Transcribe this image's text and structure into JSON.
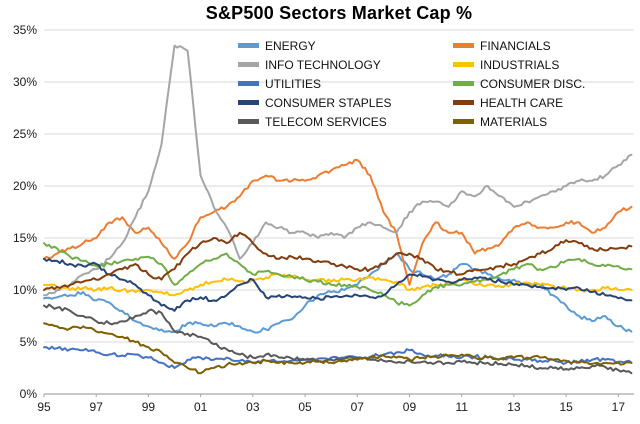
{
  "title": "S&P500 Sectors Market Cap %",
  "chart_data": {
    "type": "line",
    "title": "S&P500 Sectors Market Cap %",
    "xlabel": "",
    "ylabel": "",
    "ylim": [
      0,
      35
    ],
    "xlim": [
      1995,
      2017.6
    ],
    "grid": "horizontal-gridlines",
    "legend_position": "inside-top-center, two columns",
    "y_tick_labels": [
      "0%",
      "5%",
      "10%",
      "15%",
      "20%",
      "25%",
      "30%",
      "35%"
    ],
    "y_tick_values": [
      0,
      5,
      10,
      15,
      20,
      25,
      30,
      35
    ],
    "x_tick_labels": [
      "95",
      "97",
      "99",
      "01",
      "03",
      "05",
      "07",
      "09",
      "11",
      "13",
      "15",
      "17"
    ],
    "x_tick_values": [
      1995,
      1997,
      1999,
      2001,
      2003,
      2005,
      2007,
      2009,
      2011,
      2013,
      2015,
      2017
    ],
    "x_unit": "year (semi-annual samples)",
    "x": [
      1995,
      1995.5,
      1996,
      1996.5,
      1997,
      1997.5,
      1998,
      1998.5,
      1999,
      1999.5,
      2000,
      2000.5,
      2001,
      2001.5,
      2002,
      2002.5,
      2003,
      2003.5,
      2004,
      2004.5,
      2005,
      2005.5,
      2006,
      2006.5,
      2007,
      2007.5,
      2008,
      2008.5,
      2009,
      2009.5,
      2010,
      2010.5,
      2011,
      2011.5,
      2012,
      2012.5,
      2013,
      2013.5,
      2014,
      2014.5,
      2015,
      2015.5,
      2016,
      2016.5,
      2017,
      2017.5
    ],
    "series": [
      {
        "name": "ENERGY",
        "color": "#5B9BD5",
        "values": [
          9.2,
          9.3,
          9.5,
          9.8,
          9.0,
          8.8,
          8.0,
          7.0,
          6.5,
          6.2,
          6.0,
          6.8,
          6.8,
          6.5,
          6.8,
          6.5,
          6.0,
          6.2,
          6.8,
          7.2,
          8.5,
          9.5,
          9.8,
          10.0,
          10.5,
          11.5,
          12.5,
          13.5,
          12.0,
          11.5,
          11.0,
          11.5,
          12.5,
          12.0,
          11.5,
          11.0,
          11.0,
          10.5,
          10.5,
          9.5,
          8.5,
          7.5,
          7.0,
          7.5,
          6.5,
          6.0
        ]
      },
      {
        "name": "FINANCIALS",
        "color": "#ED7D31",
        "values": [
          13.0,
          13.5,
          14.0,
          14.5,
          15.0,
          16.5,
          17.0,
          15.5,
          16.0,
          14.5,
          13.0,
          14.5,
          17.0,
          17.5,
          18.0,
          19.0,
          20.5,
          21.0,
          20.5,
          20.5,
          20.5,
          21.0,
          21.5,
          22.0,
          22.5,
          21.0,
          17.5,
          15.5,
          10.5,
          14.5,
          16.5,
          15.5,
          15.5,
          13.5,
          14.0,
          14.5,
          16.0,
          16.5,
          16.0,
          16.0,
          16.5,
          16.5,
          15.5,
          16.0,
          17.5,
          18.0
        ]
      },
      {
        "name": "INFO TECHNOLOGY",
        "color": "#A5A5A5",
        "values": [
          9.5,
          10.0,
          10.5,
          11.5,
          12.0,
          13.0,
          14.5,
          17.0,
          19.5,
          24.0,
          33.5,
          33.0,
          21.0,
          18.0,
          16.0,
          13.0,
          14.5,
          16.5,
          16.0,
          15.5,
          15.5,
          15.0,
          15.5,
          15.0,
          16.0,
          16.5,
          16.0,
          15.5,
          17.5,
          18.5,
          18.5,
          18.0,
          19.5,
          19.0,
          20.0,
          19.0,
          18.0,
          18.5,
          19.0,
          19.5,
          20.0,
          20.5,
          20.5,
          21.0,
          22.0,
          23.0
        ]
      },
      {
        "name": "INDUSTRIALS",
        "color": "#FFC000",
        "values": [
          10.5,
          10.3,
          10.0,
          10.2,
          10.0,
          10.2,
          10.0,
          9.8,
          10.0,
          9.8,
          9.5,
          10.0,
          10.5,
          10.8,
          11.0,
          10.8,
          11.0,
          11.2,
          11.5,
          11.3,
          11.0,
          11.0,
          10.8,
          11.0,
          11.0,
          11.2,
          11.0,
          10.8,
          10.0,
          10.3,
          10.5,
          10.5,
          11.0,
          10.5,
          10.5,
          10.3,
          10.5,
          10.7,
          10.5,
          10.4,
          10.2,
          10.0,
          10.0,
          10.2,
          10.0,
          10.0
        ]
      },
      {
        "name": "UTILITIES",
        "color": "#4472C4",
        "values": [
          4.5,
          4.4,
          4.3,
          4.2,
          4.0,
          3.8,
          3.7,
          3.8,
          3.5,
          3.0,
          2.5,
          3.3,
          3.5,
          3.3,
          3.5,
          3.2,
          3.0,
          3.2,
          3.1,
          3.2,
          3.3,
          3.4,
          3.5,
          3.5,
          3.5,
          3.6,
          3.8,
          4.0,
          4.2,
          3.8,
          3.7,
          3.6,
          3.5,
          3.6,
          3.5,
          3.4,
          3.3,
          3.3,
          3.2,
          3.3,
          3.0,
          3.1,
          3.3,
          3.3,
          3.1,
          3.0
        ]
      },
      {
        "name": "CONSUMER DISC.",
        "color": "#70AD47",
        "values": [
          14.5,
          14.0,
          13.2,
          12.8,
          12.3,
          12.5,
          12.8,
          13.0,
          13.2,
          12.5,
          10.5,
          11.5,
          12.5,
          13.0,
          13.5,
          12.5,
          11.5,
          11.8,
          11.5,
          11.3,
          11.0,
          10.8,
          10.5,
          10.5,
          10.3,
          10.0,
          9.5,
          8.8,
          8.5,
          9.5,
          10.3,
          10.5,
          10.5,
          10.8,
          11.0,
          11.5,
          12.0,
          12.5,
          12.0,
          12.2,
          12.8,
          13.0,
          12.5,
          12.3,
          12.3,
          12.0
        ]
      },
      {
        "name": "CONSUMER STAPLES",
        "color": "#264478",
        "values": [
          13.0,
          12.8,
          12.5,
          12.3,
          12.5,
          11.5,
          11.0,
          10.5,
          9.5,
          8.5,
          8.0,
          9.0,
          9.3,
          9.0,
          9.5,
          10.5,
          11.0,
          9.3,
          9.5,
          9.3,
          9.3,
          9.2,
          9.3,
          9.4,
          9.5,
          9.3,
          9.5,
          10.5,
          11.5,
          11.3,
          11.0,
          10.8,
          11.0,
          11.2,
          11.0,
          10.8,
          10.5,
          10.5,
          10.3,
          10.2,
          10.0,
          10.2,
          9.8,
          9.5,
          9.2,
          9.0
        ]
      },
      {
        "name": "HEALTH CARE",
        "color": "#843C0C",
        "values": [
          10.0,
          10.3,
          10.5,
          10.8,
          11.0,
          11.5,
          12.0,
          12.5,
          11.5,
          11.0,
          12.0,
          13.5,
          14.5,
          15.0,
          14.5,
          15.5,
          14.5,
          13.5,
          13.0,
          13.2,
          13.0,
          12.8,
          12.5,
          12.3,
          12.0,
          12.0,
          12.5,
          13.5,
          13.5,
          13.0,
          12.0,
          11.8,
          11.5,
          12.0,
          12.0,
          12.3,
          12.5,
          13.0,
          13.5,
          14.0,
          14.8,
          14.5,
          14.0,
          13.8,
          14.0,
          14.2
        ]
      },
      {
        "name": "TELECOM SERVICES",
        "color": "#595959",
        "values": [
          8.5,
          8.3,
          8.0,
          7.5,
          7.0,
          6.8,
          7.0,
          7.5,
          8.0,
          7.8,
          6.0,
          5.8,
          5.5,
          4.8,
          4.3,
          3.8,
          3.5,
          3.8,
          3.5,
          3.4,
          3.3,
          3.2,
          3.3,
          3.4,
          3.5,
          3.3,
          3.2,
          3.0,
          3.2,
          3.1,
          3.0,
          3.0,
          3.1,
          3.0,
          3.0,
          2.9,
          2.8,
          2.7,
          2.5,
          2.5,
          2.4,
          2.5,
          2.7,
          2.6,
          2.3,
          2.0
        ]
      },
      {
        "name": "MATERIALS",
        "color": "#7F6000",
        "values": [
          6.8,
          6.5,
          6.3,
          6.5,
          6.0,
          5.8,
          5.5,
          5.0,
          4.5,
          4.0,
          3.0,
          2.5,
          2.0,
          2.5,
          2.8,
          3.0,
          3.0,
          3.2,
          3.0,
          3.0,
          3.0,
          3.1,
          3.0,
          3.2,
          3.3,
          3.5,
          3.7,
          3.5,
          3.3,
          3.5,
          3.6,
          3.7,
          3.8,
          3.5,
          3.5,
          3.4,
          3.5,
          3.5,
          3.5,
          3.3,
          3.2,
          3.0,
          2.9,
          3.0,
          3.0,
          3.0
        ]
      }
    ],
    "style": {
      "gridline_color": "#D9D9D9",
      "axis_line_color": "#A6A6A6",
      "tick_label_color": "#1a1a1a",
      "line_width": 2
    }
  }
}
